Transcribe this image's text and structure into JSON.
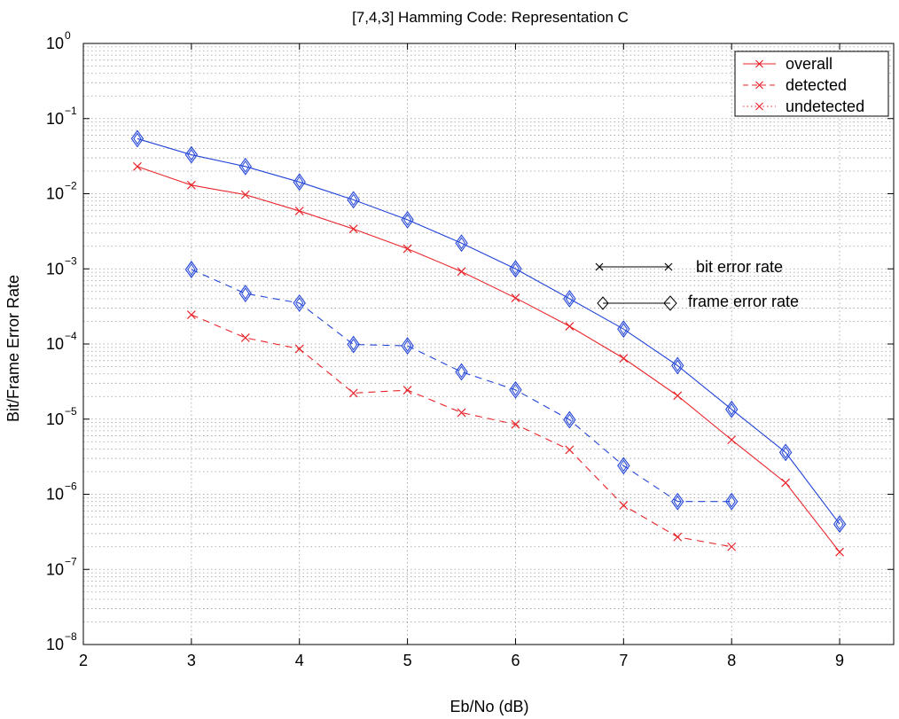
{
  "chart_data": {
    "type": "line",
    "title": "[7,4,3] Hamming Code: Representation C",
    "xlabel": "Eb/No (dB)",
    "ylabel": "Bit/Frame Error Rate",
    "xlim": [
      2,
      9.5
    ],
    "ylim_exponents": [
      -8,
      0
    ],
    "yscale": "log",
    "grid": true,
    "x_ticks": [
      2,
      3,
      4,
      5,
      6,
      7,
      8,
      9
    ],
    "x_tick_labels": [
      "2",
      "3",
      "4",
      "5",
      "6",
      "7",
      "8",
      "9"
    ],
    "y_ticks_exponent": [
      0,
      -1,
      -2,
      -3,
      -4,
      -5,
      -6,
      -7,
      -8
    ],
    "y_tick_base": "10",
    "y_tick_exponent_labels": [
      "0",
      "−1",
      "−2",
      "−3",
      "−4",
      "−5",
      "−6",
      "−7",
      "−8"
    ],
    "legend": {
      "placement": "top-right",
      "entries": [
        {
          "label": "overall",
          "style": "solid"
        },
        {
          "label": "detected",
          "style": "dashed"
        },
        {
          "label": "undetected",
          "style": "dotted"
        }
      ]
    },
    "marker_legend": [
      {
        "label": "bit error rate",
        "marker": "x"
      },
      {
        "label": "frame error rate",
        "marker": "diamond"
      }
    ],
    "series": [
      {
        "name": "overall bit error rate",
        "color": "#e8242a",
        "style": "solid",
        "marker": "x",
        "x": [
          2.5,
          3,
          3.5,
          4,
          4.5,
          5,
          5.5,
          6,
          6.5,
          7,
          7.5,
          8,
          8.5,
          9
        ],
        "y": [
          0.023,
          0.013,
          0.0097,
          0.0059,
          0.0034,
          0.00185,
          0.00092,
          0.00041,
          0.000172,
          6.45e-05,
          2.05e-05,
          5.3e-06,
          1.42e-06,
          1.7e-07
        ]
      },
      {
        "name": "overall frame error rate",
        "color": "#2244d8",
        "style": "solid",
        "marker": "diamond",
        "x": [
          2.5,
          3,
          3.5,
          4,
          4.5,
          5,
          5.5,
          6,
          6.5,
          7,
          7.5,
          8,
          8.5,
          9
        ],
        "y": [
          0.054,
          0.033,
          0.023,
          0.0143,
          0.0083,
          0.0045,
          0.0022,
          0.001,
          0.0004,
          0.000158,
          5.15e-05,
          1.35e-05,
          3.6e-06,
          4e-07
        ]
      },
      {
        "name": "detected bit error rate",
        "color": "#e8242a",
        "style": "dashed",
        "marker": "x",
        "x": [
          3,
          3.5,
          4,
          4.5,
          5,
          5.5,
          6,
          6.5,
          7,
          7.5,
          8
        ],
        "y": [
          0.000245,
          0.000121,
          8.6e-05,
          2.22e-05,
          2.43e-05,
          1.22e-05,
          8.5e-06,
          3.9e-06,
          7.1e-07,
          2.7e-07,
          2e-07
        ]
      },
      {
        "name": "detected frame error rate",
        "color": "#2244d8",
        "style": "dashed",
        "marker": "diamond",
        "x": [
          3,
          3.5,
          4,
          4.5,
          5,
          5.5,
          6,
          6.5,
          7,
          7.5,
          8
        ],
        "y": [
          0.00098,
          0.00047,
          0.00035,
          9.85e-05,
          9.45e-05,
          4.25e-05,
          2.45e-05,
          9.8e-06,
          2.4e-06,
          8e-07,
          8e-07
        ]
      }
    ],
    "colors": {
      "red": "#e8242a",
      "blue": "#2244d8",
      "grid": "#9a9a9a",
      "axis": "#000000"
    }
  }
}
